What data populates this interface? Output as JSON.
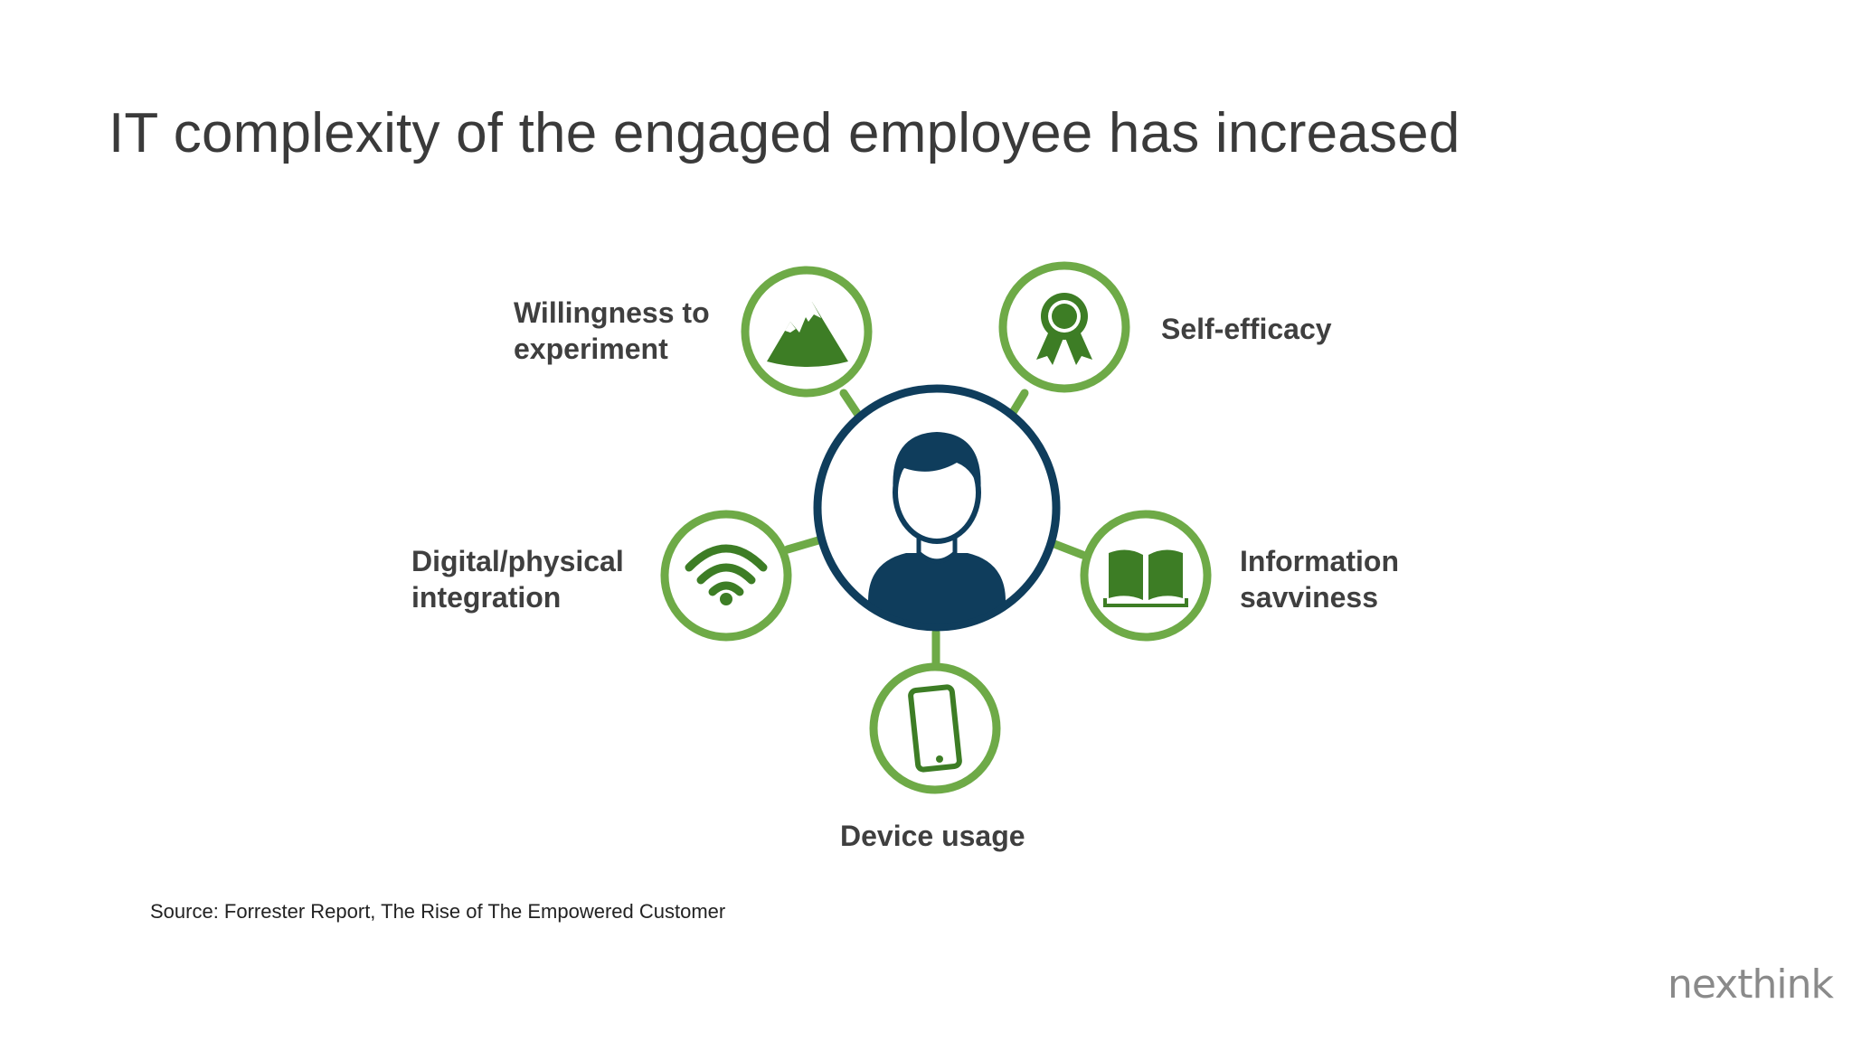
{
  "slide": {
    "title": "IT complexity of the engaged employee has increased",
    "source": "Source:  Forrester Report, The Rise of The Empowered Customer",
    "logo": "nexthink"
  },
  "diagram": {
    "nodes": [
      {
        "id": "willingness",
        "label_lines": [
          "Willingness to",
          "experiment"
        ],
        "icon": "mountain-icon"
      },
      {
        "id": "self-efficacy",
        "label_lines": [
          "Self-efficacy"
        ],
        "icon": "award-ribbon-icon"
      },
      {
        "id": "digital-physical",
        "label_lines": [
          "Digital/physical",
          "integration"
        ],
        "icon": "wifi-icon"
      },
      {
        "id": "information",
        "label_lines": [
          "Information",
          "savviness"
        ],
        "icon": "open-book-icon"
      },
      {
        "id": "device",
        "label_lines": [
          "Device usage"
        ],
        "icon": "smartphone-icon"
      }
    ],
    "center_icon": "person-icon",
    "colors": {
      "ring_green": "#6eaa47",
      "icon_green": "#3d7d25",
      "center_navy": "#0f3d5c",
      "text": "#3f3f3f"
    }
  }
}
